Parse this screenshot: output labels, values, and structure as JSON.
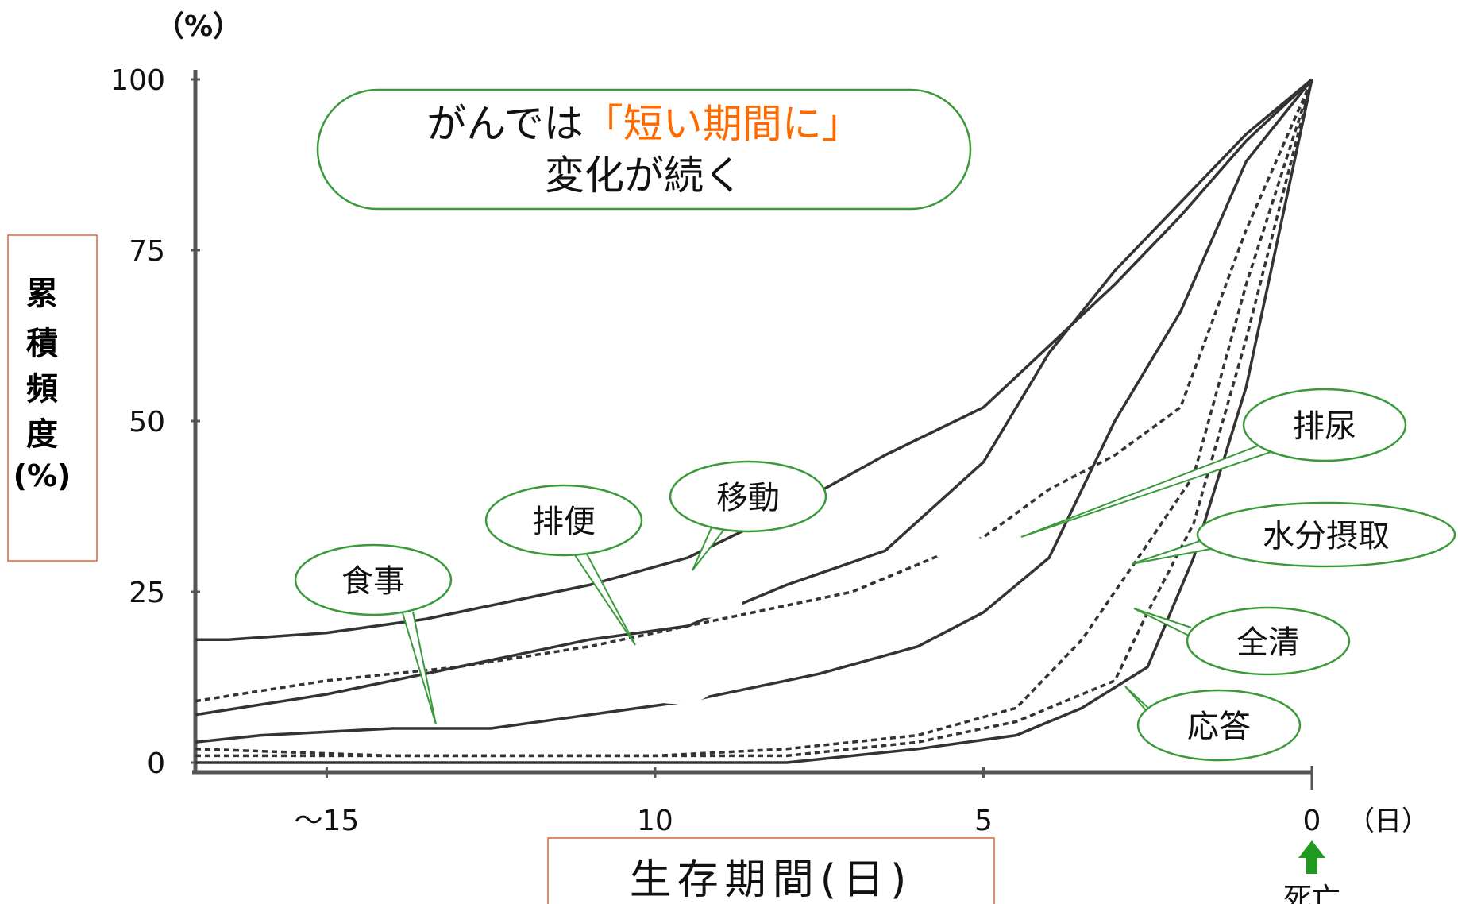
{
  "chart_data": {
    "type": "line",
    "callout_title": {
      "part1": "がんでは",
      "highlight": "「短い期間に」",
      "line2": "変化が続く"
    },
    "ylabel": "累積頻度(%)",
    "ylabel_chars": [
      "累",
      "積",
      "頻",
      "度",
      "(%)"
    ],
    "y_unit": "（%）",
    "x_unit": "（日）",
    "xlabel": "生存期間(日)",
    "death_label": "死亡",
    "xlim": [
      17,
      0
    ],
    "ylim": [
      0,
      100
    ],
    "y_ticks": [
      0,
      25,
      50,
      75,
      100
    ],
    "x_ticks": [
      {
        "value": 15,
        "label": "～15"
      },
      {
        "value": 10,
        "label": "10"
      },
      {
        "value": 5,
        "label": "5"
      },
      {
        "value": 0,
        "label": "0"
      }
    ],
    "series": [
      {
        "name": "移動",
        "style": "solid",
        "points": [
          [
            17,
            18
          ],
          [
            16.5,
            18
          ],
          [
            15,
            19
          ],
          [
            13.5,
            21
          ],
          [
            11,
            26
          ],
          [
            9.5,
            30
          ],
          [
            8,
            37
          ],
          [
            6.5,
            45
          ],
          [
            5,
            52
          ],
          [
            3,
            70
          ],
          [
            2,
            80
          ],
          [
            1,
            91
          ],
          [
            0,
            100
          ]
        ]
      },
      {
        "name": "排便",
        "style": "solid",
        "points": [
          [
            17,
            7
          ],
          [
            15,
            10
          ],
          [
            13,
            14
          ],
          [
            11,
            18
          ],
          [
            9.5,
            20
          ],
          [
            8,
            26
          ],
          [
            6.5,
            31
          ],
          [
            5,
            44
          ],
          [
            4,
            60
          ],
          [
            3,
            72
          ],
          [
            2,
            82
          ],
          [
            1,
            92
          ],
          [
            0,
            100
          ]
        ]
      },
      {
        "name": "排尿",
        "style": "dashed",
        "points": [
          [
            17,
            9
          ],
          [
            15,
            12
          ],
          [
            13,
            14
          ],
          [
            11,
            17
          ],
          [
            9,
            21
          ],
          [
            7,
            25
          ],
          [
            5,
            33
          ],
          [
            4,
            40
          ],
          [
            3,
            45
          ],
          [
            2,
            52
          ],
          [
            1,
            78
          ],
          [
            0,
            100
          ]
        ]
      },
      {
        "name": "食事",
        "style": "solid",
        "points": [
          [
            17,
            3
          ],
          [
            16,
            4
          ],
          [
            14,
            5
          ],
          [
            12.5,
            5
          ],
          [
            11,
            7
          ],
          [
            9.5,
            9
          ],
          [
            7.5,
            13
          ],
          [
            6,
            17
          ],
          [
            5,
            22
          ],
          [
            4,
            30
          ],
          [
            3,
            50
          ],
          [
            2,
            66
          ],
          [
            1,
            88
          ],
          [
            0,
            100
          ]
        ]
      },
      {
        "name": "水分摂取",
        "style": "dashed",
        "points": [
          [
            17,
            2
          ],
          [
            14,
            1
          ],
          [
            12,
            1
          ],
          [
            10,
            1
          ],
          [
            8,
            2
          ],
          [
            6,
            4
          ],
          [
            4.5,
            8
          ],
          [
            3.5,
            18
          ],
          [
            2.5,
            32
          ],
          [
            1.8,
            42
          ],
          [
            1,
            70
          ],
          [
            0,
            100
          ]
        ]
      },
      {
        "name": "全清",
        "style": "dashed",
        "points": [
          [
            17,
            1
          ],
          [
            14,
            1
          ],
          [
            12,
            1
          ],
          [
            10,
            1
          ],
          [
            8,
            1
          ],
          [
            6,
            3
          ],
          [
            4.5,
            6
          ],
          [
            3,
            12
          ],
          [
            2.5,
            22
          ],
          [
            1.8,
            35
          ],
          [
            1,
            62
          ],
          [
            0,
            100
          ]
        ]
      },
      {
        "name": "応答",
        "style": "solid",
        "points": [
          [
            17,
            0
          ],
          [
            14,
            0
          ],
          [
            12,
            0
          ],
          [
            10,
            0
          ],
          [
            8,
            0
          ],
          [
            6,
            2
          ],
          [
            4.5,
            4
          ],
          [
            3.5,
            8
          ],
          [
            2.5,
            14
          ],
          [
            1.8,
            30
          ],
          [
            1,
            55
          ],
          [
            0,
            100
          ]
        ]
      }
    ],
    "callouts": [
      "食事",
      "排便",
      "移動",
      "排尿",
      "水分摂取",
      "全清",
      "応答"
    ],
    "grid": false,
    "colors": {
      "accent": "#ff6a00",
      "callout_border": "#3a9a3a",
      "axis_box_border": "#d9663a",
      "arrow": "#1f9a1f",
      "line": "#333333"
    }
  }
}
